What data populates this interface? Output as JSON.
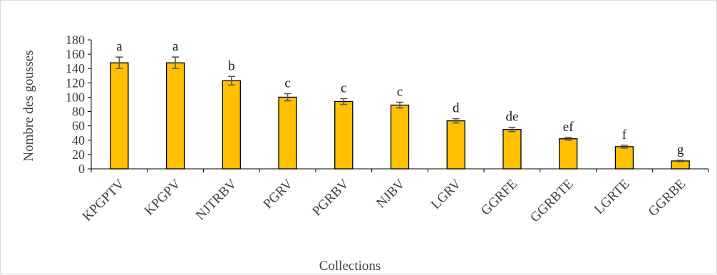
{
  "chart_data": {
    "type": "bar",
    "title": "",
    "xlabel": "Collections",
    "ylabel": "Nombre des gousses",
    "ylim": [
      0,
      180
    ],
    "yticks": [
      0,
      20,
      40,
      60,
      80,
      100,
      120,
      140,
      160,
      180
    ],
    "grid": false,
    "categories": [
      "KPGPTV",
      "KPGPV",
      "NJTRBV",
      "PGRV",
      "PGRBV",
      "NJBV",
      "LGRV",
      "GGRFE",
      "GGRBTE",
      "LGRTE",
      "GGRBE"
    ],
    "values": [
      148,
      148,
      123,
      100,
      94,
      89,
      67,
      55,
      42,
      31,
      11
    ],
    "errors": [
      8,
      8,
      6,
      5,
      4,
      4,
      3,
      3,
      2,
      2,
      1
    ],
    "significance_letters": [
      "a",
      "a",
      "b",
      "c",
      "c",
      "c",
      "d",
      "de",
      "ef",
      "f",
      "g"
    ],
    "bar_color": "#FFC000",
    "bar_edge_color": "#000000",
    "error_bar_color": "#595959"
  }
}
